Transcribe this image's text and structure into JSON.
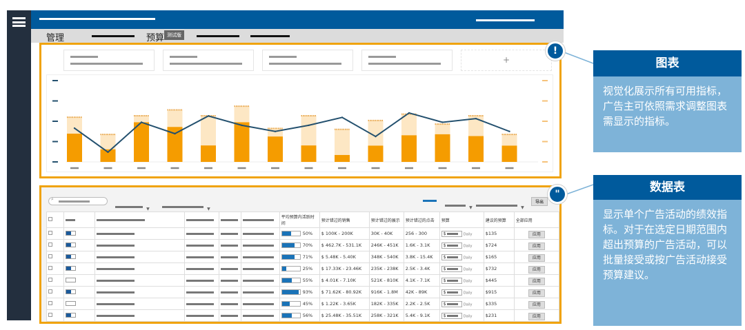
{
  "nav": {
    "tab_manage": "管理",
    "tab_budget": "预算",
    "beta_badge": "测试版",
    "menu_icon": "hamburger-icon"
  },
  "kpi": {
    "add_label": "+"
  },
  "chart_data": {
    "type": "bar+line",
    "title": "",
    "xlabel": "",
    "ylabel": "",
    "series": [
      {
        "type": "bar",
        "values": [
          1.39,
          0.62,
          1.95,
          1.72,
          0.81,
          1.95,
          1.25,
          0.81,
          0.34,
          0.8,
          1.31,
          1.36,
          1.27,
          0.8
        ]
      },
      {
        "type": "bar-stacked-light",
        "values": [
          2.2,
          1.35,
          2.27,
          2.56,
          2.27,
          2.74,
          1.65,
          2.27,
          1.6,
          2.04,
          2.35,
          1.86,
          2.27,
          1.35
        ]
      },
      {
        "type": "line",
        "values": [
          1.66,
          0.48,
          1.95,
          1.39,
          2.26,
          1.8,
          1.5,
          1.8,
          2.19,
          1.25,
          2.41,
          1.95,
          2.13,
          1.5
        ]
      }
    ],
    "ylim": [
      0,
      4
    ],
    "colors": {
      "bar": "#f59c00",
      "bar_light": "#fde7c4",
      "line": "#23506e"
    }
  },
  "table": {
    "export_label": "导出",
    "headers": {
      "avg_active": "平均预算内活跃时间",
      "sales": "预计错过的销售",
      "impressions": "预计错过的展示",
      "clicks": "预计错过的点击",
      "budget": "预算",
      "suggested": "建议的预算",
      "apply_all": "全部应用"
    },
    "rows": [
      {
        "pct": "50%",
        "fill": 50,
        "sales": "$ 100K - 200K",
        "imp": "30K - 40K",
        "clicks": "256 - 300",
        "cur": "$",
        "period": "Daily",
        "sug": "$135",
        "apply": "应用",
        "on": true
      },
      {
        "pct": "70%",
        "fill": 70,
        "sales": "$ 462.7K - 531.1K",
        "imp": "246K - 451K",
        "clicks": "1.6K - 3.1K",
        "cur": "$",
        "period": "Daily",
        "sug": "$724",
        "apply": "应用",
        "on": true
      },
      {
        "pct": "71%",
        "fill": 71,
        "sales": "$ 5.48K - 5.40K",
        "imp": "348K - 540K",
        "clicks": "3.8K - 15.4K",
        "cur": "$",
        "period": "Daily",
        "sug": "$165",
        "apply": "应用",
        "on": true
      },
      {
        "pct": "25%",
        "fill": 25,
        "sales": "$ 17.33K - 23.46K",
        "imp": "235K - 238K",
        "clicks": "2.5K - 3.4K",
        "cur": "$",
        "period": "Daily",
        "sug": "$732",
        "apply": "应用",
        "on": true
      },
      {
        "pct": "55%",
        "fill": 55,
        "sales": "$ 4.01K - 7.10K",
        "imp": "521K - 810K",
        "clicks": "4.1K - 7.1K",
        "cur": "$",
        "period": "Daily",
        "sug": "$445",
        "apply": "应用",
        "on": false
      },
      {
        "pct": "93%",
        "fill": 93,
        "sales": "$ 71.62K - 80.92K",
        "imp": "916K - 1.8M",
        "clicks": "42K - 89K",
        "cur": "$",
        "period": "Daily",
        "sug": "$915",
        "apply": "应用",
        "on": true
      },
      {
        "pct": "45%",
        "fill": 45,
        "sales": "$ 1.22K - 3.65K",
        "imp": "182K - 335K",
        "clicks": "2.2K - 2.5K",
        "cur": "$",
        "period": "Daily",
        "sug": "$335",
        "apply": "应用",
        "on": false
      },
      {
        "pct": "56%",
        "fill": 56,
        "sales": "$ 25.48K - 35.51K",
        "imp": "258K - 321K",
        "clicks": "5.4K - 9.1K",
        "cur": "$",
        "period": "Daily",
        "sug": "$231",
        "apply": "应用",
        "on": true
      }
    ]
  },
  "callouts": [
    {
      "badge": "!",
      "title": "图表",
      "body": "视觉化展示所有可用指标，广告主可依照需求调整图表需显示的指标。"
    },
    {
      "badge": "\"",
      "title": "数据表",
      "body": "显示单个广告活动的绩效指标。对于在选定日期范围内超出预算的广告活动，可以批量接受或按广告活动接受预算建议。"
    }
  ]
}
